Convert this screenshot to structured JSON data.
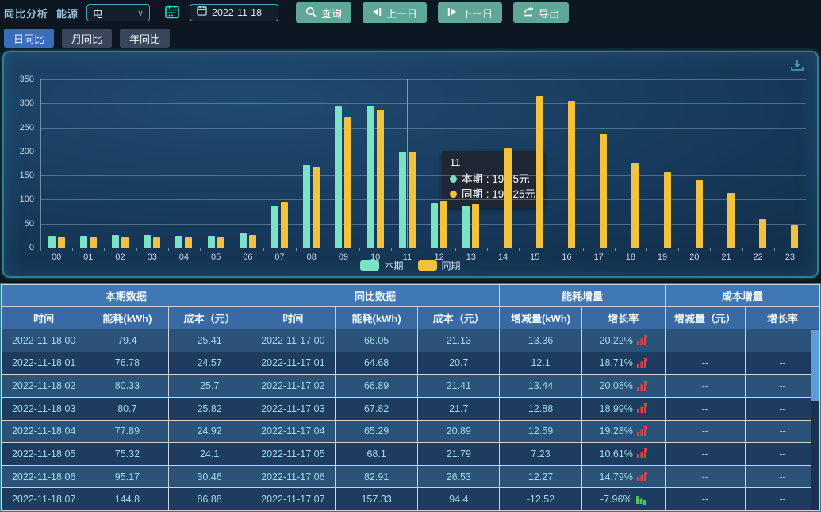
{
  "toolbar": {
    "title": "同比分析",
    "energy_label": "能源",
    "energy_value": "电",
    "date_value": "2022-11-18",
    "query_label": "查询",
    "prev_label": "上一日",
    "next_label": "下一日",
    "export_label": "导出"
  },
  "tabs": [
    {
      "label": "日同比",
      "active": true
    },
    {
      "label": "月同比",
      "active": false
    },
    {
      "label": "年同比",
      "active": false
    }
  ],
  "chart_data": {
    "type": "bar",
    "title": "",
    "xlabel": "",
    "ylabel": "",
    "unit": "元",
    "ylim": [
      0,
      350
    ],
    "ytick_step": 50,
    "grid": true,
    "legend_position": "bottom",
    "categories": [
      "00",
      "01",
      "02",
      "03",
      "04",
      "05",
      "06",
      "07",
      "08",
      "09",
      "10",
      "11",
      "12",
      "13",
      "14",
      "15",
      "16",
      "17",
      "18",
      "19",
      "20",
      "21",
      "22",
      "23"
    ],
    "series": [
      {
        "name": "本期",
        "color": "#7ce2c5",
        "values": [
          25.41,
          24.57,
          25.7,
          25.82,
          24.92,
          24.1,
          30.46,
          86.88,
          172,
          294,
          296,
          199.5,
          93,
          88,
          0,
          0,
          0,
          0,
          0,
          0,
          0,
          0,
          0,
          0
        ]
      },
      {
        "name": "同期",
        "color": "#f2c23e",
        "values": [
          21.13,
          20.7,
          21.41,
          21.7,
          20.89,
          21.79,
          26.53,
          94.4,
          167,
          270,
          288,
          199.25,
          98,
          91,
          206,
          316,
          306,
          236,
          177,
          157,
          140,
          114,
          60,
          46
        ]
      }
    ]
  },
  "tooltip": {
    "title": "11",
    "lines": [
      {
        "series": "本期",
        "value": "199.5元",
        "color": "#7ce2c5"
      },
      {
        "series": "同期",
        "value": "199.25元",
        "color": "#f2c23e"
      }
    ]
  },
  "table": {
    "groups": [
      {
        "label": "本期数据",
        "span": 3
      },
      {
        "label": "同比数据",
        "span": 3
      },
      {
        "label": "能耗增量",
        "span": 2
      },
      {
        "label": "成本增量",
        "span": 2
      }
    ],
    "columns": [
      "时间",
      "能耗(kWh)",
      "成本（元）",
      "时间",
      "能耗(kWh)",
      "成本（元）",
      "增减量(kWh)",
      "增长率",
      "增减量（元）",
      "增长率"
    ],
    "rows": [
      {
        "time": "2022-11-18 00",
        "kwh": "79.4",
        "cost": "25.41",
        "yoy_time": "2022-11-17 00",
        "yoy_kwh": "66.05",
        "yoy_cost": "21.13",
        "delta_kwh": "13.36",
        "rate": "20.22%",
        "trend": "up",
        "delta_cost": "--",
        "cost_rate": "--"
      },
      {
        "time": "2022-11-18 01",
        "kwh": "76.78",
        "cost": "24.57",
        "yoy_time": "2022-11-17 01",
        "yoy_kwh": "64.68",
        "yoy_cost": "20.7",
        "delta_kwh": "12.1",
        "rate": "18.71%",
        "trend": "up",
        "delta_cost": "--",
        "cost_rate": "--"
      },
      {
        "time": "2022-11-18 02",
        "kwh": "80.33",
        "cost": "25.7",
        "yoy_time": "2022-11-17 02",
        "yoy_kwh": "66.89",
        "yoy_cost": "21.41",
        "delta_kwh": "13.44",
        "rate": "20.08%",
        "trend": "up",
        "delta_cost": "--",
        "cost_rate": "--"
      },
      {
        "time": "2022-11-18 03",
        "kwh": "80.7",
        "cost": "25.82",
        "yoy_time": "2022-11-17 03",
        "yoy_kwh": "67.82",
        "yoy_cost": "21.7",
        "delta_kwh": "12.88",
        "rate": "18.99%",
        "trend": "up",
        "delta_cost": "--",
        "cost_rate": "--"
      },
      {
        "time": "2022-11-18 04",
        "kwh": "77.89",
        "cost": "24.92",
        "yoy_time": "2022-11-17 04",
        "yoy_kwh": "65.29",
        "yoy_cost": "20.89",
        "delta_kwh": "12.59",
        "rate": "19.28%",
        "trend": "up",
        "delta_cost": "--",
        "cost_rate": "--"
      },
      {
        "time": "2022-11-18 05",
        "kwh": "75.32",
        "cost": "24.1",
        "yoy_time": "2022-11-17 05",
        "yoy_kwh": "68.1",
        "yoy_cost": "21.79",
        "delta_kwh": "7.23",
        "rate": "10.61%",
        "trend": "up",
        "delta_cost": "--",
        "cost_rate": "--"
      },
      {
        "time": "2022-11-18 06",
        "kwh": "95.17",
        "cost": "30.46",
        "yoy_time": "2022-11-17 06",
        "yoy_kwh": "82.91",
        "yoy_cost": "26.53",
        "delta_kwh": "12.27",
        "rate": "14.79%",
        "trend": "up",
        "delta_cost": "--",
        "cost_rate": "--"
      },
      {
        "time": "2022-11-18 07",
        "kwh": "144.8",
        "cost": "86.88",
        "yoy_time": "2022-11-17 07",
        "yoy_kwh": "157.33",
        "yoy_cost": "94.4",
        "delta_kwh": "-12.52",
        "rate": "-7.96%",
        "trend": "down",
        "delta_cost": "--",
        "cost_rate": "--"
      }
    ]
  },
  "colors": {
    "accent_teal": "#5fa796",
    "tab_active": "#3a6db8",
    "bar_current": "#7ce2c5",
    "bar_previous": "#f2c23e",
    "rate_up": "#e04343",
    "rate_down": "#55c05b"
  }
}
